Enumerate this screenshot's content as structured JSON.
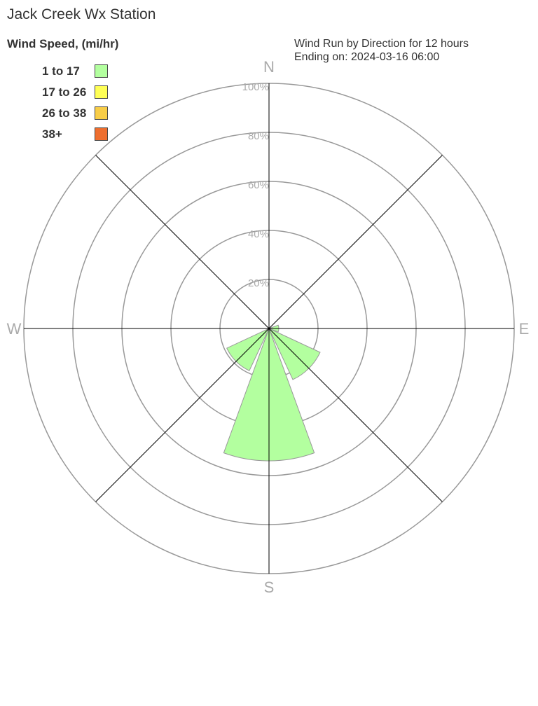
{
  "chart_data": {
    "type": "wind-rose",
    "title": "Jack Creek Wx Station",
    "subtitle": [
      "Wind Run by Direction for 12 hours",
      "Ending on: 2024-03-16 06:00"
    ],
    "legend_title": "Wind Speed, (mi/hr)",
    "legend_placement": "top-left",
    "bins": [
      {
        "label": "1 to 17",
        "color": "#b3ff9f"
      },
      {
        "label": "17 to 26",
        "color": "#ffff55"
      },
      {
        "label": "26 to 38",
        "color": "#f8cd47"
      },
      {
        "label": "38+",
        "color": "#ee6e2e"
      }
    ],
    "compass": [
      "N",
      "E",
      "S",
      "W"
    ],
    "ring_labels": [
      "20%",
      "40%",
      "60%",
      "80%",
      "100%"
    ],
    "rlim": [
      0,
      100
    ],
    "directions_deg": [
      90,
      135,
      180,
      225
    ],
    "series": [
      {
        "bin": "1 to 17",
        "values": [
          4,
          23,
          54,
          19
        ]
      }
    ]
  }
}
